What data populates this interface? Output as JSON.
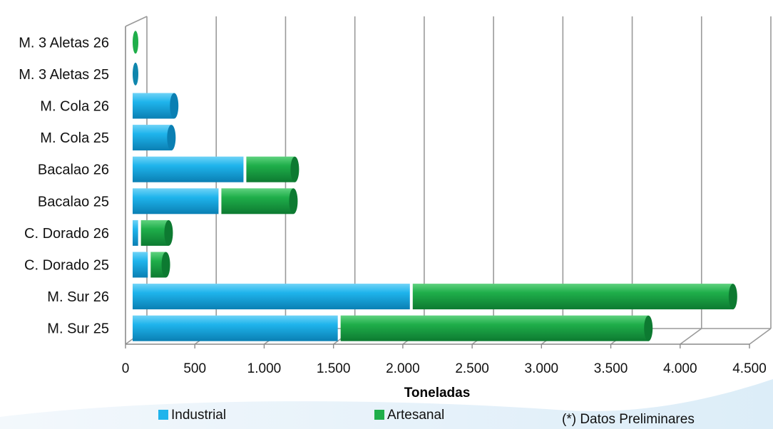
{
  "chart_data": {
    "type": "bar",
    "orientation": "horizontal",
    "stacked": true,
    "categories": [
      "M. Sur 25",
      "M. Sur 26",
      "C. Dorado 25",
      "C. Dorado 26",
      "Bacalao 25",
      "Bacalao 26",
      "M. Cola 25",
      "M. Cola 26",
      "M. 3 Aletas 25",
      "M. 3 Aletas 26"
    ],
    "series": [
      {
        "name": "Industrial",
        "color": "#1fb4ec",
        "values": [
          1500,
          2020,
          130,
          60,
          640,
          820,
          300,
          320,
          0,
          0
        ]
      },
      {
        "name": "Artesanal",
        "color": "#1fae4a",
        "values": [
          2240,
          2330,
          130,
          220,
          540,
          370,
          0,
          0,
          0,
          0
        ]
      }
    ],
    "xlabel": "Toneladas",
    "xlim": [
      0,
      4500
    ],
    "xticks": [
      "0",
      "500",
      "1.000",
      "1.500",
      "2.000",
      "2.500",
      "3.000",
      "3.500",
      "4.000",
      "4.500"
    ],
    "grid": true,
    "legend_position": "bottom",
    "note": "(*) Datos Preliminares"
  }
}
